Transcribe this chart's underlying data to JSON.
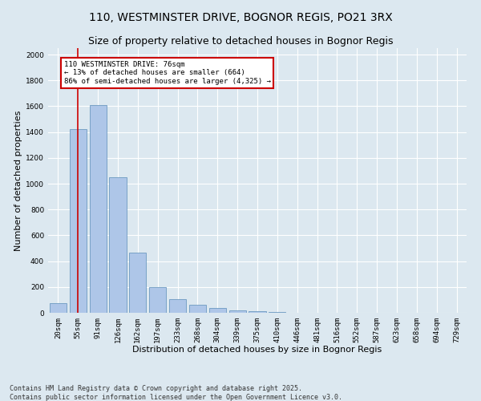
{
  "title_line1": "110, WESTMINSTER DRIVE, BOGNOR REGIS, PO21 3RX",
  "title_line2": "Size of property relative to detached houses in Bognor Regis",
  "xlabel": "Distribution of detached houses by size in Bognor Regis",
  "ylabel": "Number of detached properties",
  "categories": [
    "20sqm",
    "55sqm",
    "91sqm",
    "126sqm",
    "162sqm",
    "197sqm",
    "233sqm",
    "268sqm",
    "304sqm",
    "339sqm",
    "375sqm",
    "410sqm",
    "446sqm",
    "481sqm",
    "516sqm",
    "552sqm",
    "587sqm",
    "623sqm",
    "658sqm",
    "694sqm",
    "729sqm"
  ],
  "values": [
    75,
    1425,
    1610,
    1050,
    465,
    200,
    105,
    65,
    40,
    20,
    10,
    5,
    2,
    0,
    0,
    0,
    0,
    0,
    0,
    0,
    0
  ],
  "bar_color": "#aec6e8",
  "bar_edge_color": "#5b8db8",
  "property_bin_index": 1,
  "vline_color": "#cc0000",
  "annotation_text": "110 WESTMINSTER DRIVE: 76sqm\n← 13% of detached houses are smaller (664)\n86% of semi-detached houses are larger (4,325) →",
  "annotation_box_color": "#cc0000",
  "footnote_line1": "Contains HM Land Registry data © Crown copyright and database right 2025.",
  "footnote_line2": "Contains public sector information licensed under the Open Government Licence v3.0.",
  "background_color": "#dce8f0",
  "plot_background_color": "#dce8f0",
  "grid_color": "#ffffff",
  "ylim": [
    0,
    2050
  ],
  "yticks": [
    0,
    200,
    400,
    600,
    800,
    1000,
    1200,
    1400,
    1600,
    1800,
    2000
  ],
  "title_fontsize": 10,
  "subtitle_fontsize": 9,
  "axis_label_fontsize": 8,
  "tick_fontsize": 6.5,
  "annotation_fontsize": 6.5,
  "footnote_fontsize": 6
}
